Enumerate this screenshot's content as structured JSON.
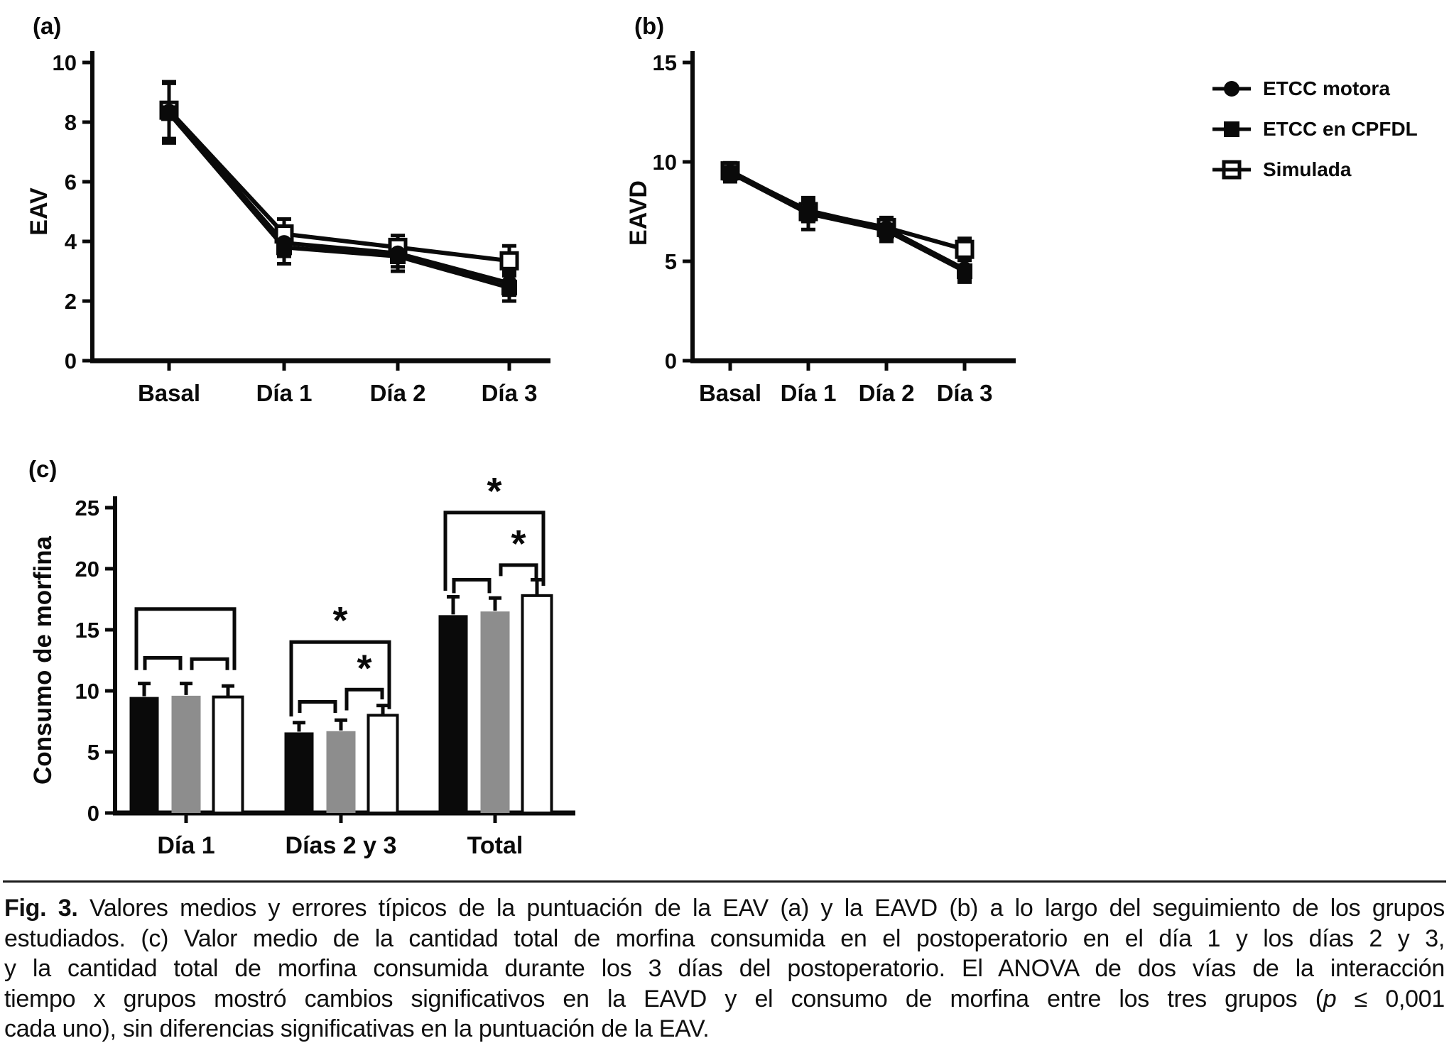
{
  "figure": {
    "panel_a_label": "(a)",
    "panel_b_label": "(b)",
    "panel_c_label": "(c)"
  },
  "legend": {
    "items": [
      {
        "label": "ETCC motora",
        "marker": "filled-circle"
      },
      {
        "label": "ETCC en CPFDL",
        "marker": "filled-square"
      },
      {
        "label": "Simulada",
        "marker": "open-square"
      }
    ]
  },
  "colors": {
    "ink": "#0a0a0a",
    "bar_black": "#0a0a0a",
    "bar_gray": "#8d8d8d",
    "bar_white": "#ffffff"
  },
  "chart_data": [
    {
      "id": "a",
      "type": "line",
      "title": "",
      "xlabel": "",
      "ylabel": "EAV",
      "categories": [
        "Basal",
        "Día 1",
        "Día 2",
        "Día 3"
      ],
      "ylim": [
        0,
        10
      ],
      "yticks": [
        0,
        2,
        4,
        6,
        8,
        10
      ],
      "grid": false,
      "series": [
        {
          "name": "ETCC motora",
          "marker": "filled-circle",
          "values": [
            8.35,
            3.95,
            3.6,
            2.6
          ],
          "err": [
            1.0,
            0.45,
            0.45,
            0.4
          ]
        },
        {
          "name": "ETCC en CPFDL",
          "marker": "filled-square",
          "values": [
            8.3,
            3.8,
            3.5,
            2.45
          ],
          "err": [
            1.0,
            0.55,
            0.5,
            0.45
          ]
        },
        {
          "name": "Simulada",
          "marker": "open-square",
          "values": [
            8.4,
            4.25,
            3.8,
            3.35
          ],
          "err": [
            0.95,
            0.5,
            0.4,
            0.5
          ]
        }
      ]
    },
    {
      "id": "b",
      "type": "line",
      "title": "",
      "xlabel": "",
      "ylabel": "EAVD",
      "categories": [
        "Basal",
        "Día 1",
        "Día 2",
        "Día 3"
      ],
      "ylim": [
        0,
        15
      ],
      "yticks": [
        0,
        5,
        10,
        15
      ],
      "grid": false,
      "series": [
        {
          "name": "ETCC motora",
          "marker": "filled-circle",
          "values": [
            9.5,
            7.55,
            6.65,
            4.6
          ],
          "err": [
            0.45,
            0.55,
            0.5,
            0.5
          ]
        },
        {
          "name": "ETCC en CPFDL",
          "marker": "filled-square",
          "values": [
            9.45,
            7.4,
            6.55,
            4.5
          ],
          "err": [
            0.45,
            0.8,
            0.55,
            0.55
          ]
        },
        {
          "name": "Simulada",
          "marker": "open-square",
          "values": [
            9.55,
            7.5,
            6.7,
            5.6
          ],
          "err": [
            0.4,
            0.5,
            0.5,
            0.55
          ]
        }
      ]
    },
    {
      "id": "c",
      "type": "bar",
      "title": "",
      "xlabel": "",
      "ylabel": "Consumo de morfina",
      "categories": [
        "Día 1",
        "Días 2 y 3",
        "Total"
      ],
      "ylim": [
        0,
        25
      ],
      "yticks": [
        0,
        5,
        10,
        15,
        20,
        25
      ],
      "grid": false,
      "series": [
        {
          "name": "ETCC motora",
          "fill": "black",
          "values": [
            9.5,
            6.6,
            16.2
          ],
          "err": [
            1.1,
            0.8,
            1.5
          ]
        },
        {
          "name": "ETCC en CPFDL",
          "fill": "gray",
          "values": [
            9.6,
            6.7,
            16.5
          ],
          "err": [
            1.0,
            0.9,
            1.1
          ]
        },
        {
          "name": "Simulada",
          "fill": "white",
          "values": [
            9.5,
            8.0,
            17.8
          ],
          "err": [
            0.9,
            0.8,
            1.3
          ]
        }
      ],
      "significance": [
        {
          "group": 0,
          "from": 0,
          "to": 2,
          "top": 16.7,
          "legs": [
            11.7,
            11.7
          ],
          "star": false
        },
        {
          "group": 0,
          "from": 0,
          "to": 1,
          "top": 12.7,
          "legs": [
            11.7,
            11.7
          ],
          "star": false
        },
        {
          "group": 0,
          "from": 1,
          "to": 2,
          "top": 12.6,
          "legs": [
            11.7,
            11.7
          ],
          "star": false
        },
        {
          "group": 1,
          "from": 0,
          "to": 2,
          "top": 14.0,
          "legs": [
            7.9,
            8.5
          ],
          "star": true
        },
        {
          "group": 1,
          "from": 0,
          "to": 1,
          "top": 9.1,
          "legs": [
            8.2,
            8.2
          ],
          "star": false
        },
        {
          "group": 1,
          "from": 1,
          "to": 2,
          "top": 10.1,
          "legs": [
            8.4,
            9.3
          ],
          "star": true
        },
        {
          "group": 2,
          "from": 0,
          "to": 2,
          "top": 24.6,
          "legs": [
            18.2,
            18.6
          ],
          "star": true
        },
        {
          "group": 2,
          "from": 0,
          "to": 1,
          "top": 19.1,
          "legs": [
            18.0,
            18.0
          ],
          "star": false
        },
        {
          "group": 2,
          "from": 1,
          "to": 2,
          "top": 20.3,
          "legs": [
            19.4,
            19.2
          ],
          "star": true
        }
      ],
      "star_symbol": "*"
    }
  ],
  "caption": {
    "fig_label": "Fig. 3.",
    "line1_rest": " Valores medios y errores típicos de la puntuación de la EAV (a) y la EAVD (b) a lo largo del seguimiento de los grupos",
    "line2": "estudiados. (c) Valor medio de la cantidad total de morfina consumida en el postoperatorio en el día 1 y los días 2 y 3,",
    "line3": "y la cantidad total de morfina consumida durante los 3 días del postoperatorio. El ANOVA de dos vías de la interacción",
    "line4_pre": "tiempo x grupos mostró cambios significativos en la EAVD y el consumo de morfina entre los tres grupos (",
    "line4_p": "p",
    "line4_post": " ≤ 0,001",
    "line5": "cada uno), sin diferencias significativas en la puntuación de la EAV."
  }
}
